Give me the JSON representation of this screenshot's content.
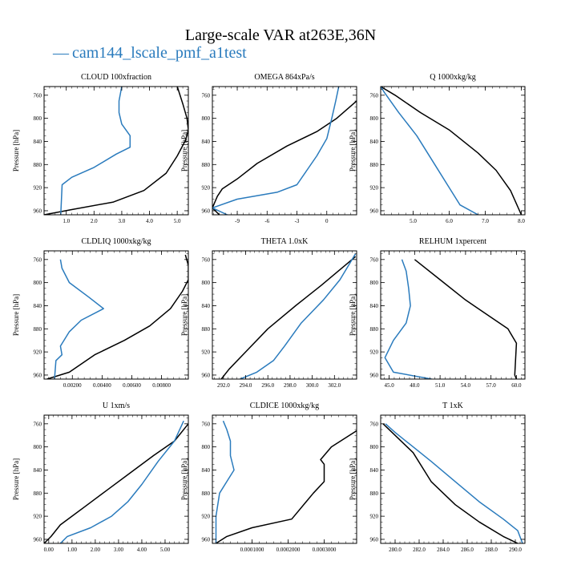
{
  "figure": {
    "title": "Large-scale VAR at263E,36N",
    "legend": {
      "dash": "—",
      "label": "cam144_lscale_pmf_a1test"
    },
    "colors": {
      "series_a": "#000000",
      "series_b": "#2a7bbd"
    }
  },
  "chart_data": [
    {
      "type": "line",
      "title": "CLOUD  100xfraction",
      "ylabel": "Pressure [hPa]",
      "xlim": [
        0.2,
        5.4
      ],
      "ylim": [
        745,
        967
      ],
      "xticks": [
        1.0,
        2.0,
        3.0,
        4.0,
        5.0
      ],
      "xticklabels": [
        "1.0",
        "2.0",
        "3.0",
        "4.0",
        "5.0"
      ],
      "yticks": [
        760,
        800,
        840,
        880,
        920,
        960
      ],
      "yticklabels": [
        "760",
        "800",
        "840",
        "880",
        "920",
        "960"
      ],
      "series": [
        {
          "name": "black",
          "color": "#000000",
          "x": [
            0.2,
            1.2,
            2.7,
            3.8,
            4.6,
            5.0,
            5.3,
            5.4,
            5.35,
            5.2,
            5.0
          ],
          "y": [
            967,
            958,
            945,
            925,
            895,
            865,
            838,
            820,
            800,
            775,
            745
          ]
        },
        {
          "name": "blue",
          "color": "#2a7bbd",
          "x": [
            0.8,
            0.85,
            1.2,
            2.0,
            2.8,
            3.3,
            3.3,
            3.0,
            2.9,
            2.9,
            3.0
          ],
          "y": [
            967,
            915,
            902,
            885,
            862,
            850,
            830,
            810,
            790,
            770,
            745
          ]
        }
      ]
    },
    {
      "type": "line",
      "title": "OMEGA  864xPa/s",
      "ylabel": "Pressure [hPa]",
      "xlim": [
        -11.5,
        3
      ],
      "ylim": [
        745,
        967
      ],
      "xticks": [
        -9,
        -6,
        -3,
        0
      ],
      "xticklabels": [
        "-9",
        "-6",
        "-3",
        "0"
      ],
      "yticks": [
        760,
        800,
        840,
        880,
        920,
        960
      ],
      "yticklabels": [
        "760",
        "800",
        "840",
        "880",
        "920",
        "960"
      ],
      "series": [
        {
          "name": "black",
          "color": "#000000",
          "x": [
            -10.8,
            -11.5,
            -11,
            -10.5,
            -9,
            -7,
            -4,
            -1,
            1,
            3
          ],
          "y": [
            967,
            955,
            935,
            922,
            905,
            878,
            848,
            823,
            800,
            770
          ]
        },
        {
          "name": "blue",
          "color": "#2a7bbd",
          "x": [
            -10,
            -11.5,
            -9,
            -5,
            -3,
            -2,
            -1,
            0,
            0.5,
            0.9,
            1.2
          ],
          "y": [
            967,
            955,
            940,
            928,
            915,
            890,
            865,
            835,
            800,
            770,
            745
          ]
        }
      ]
    },
    {
      "type": "line",
      "title": "Q  1000xkg/kg",
      "ylabel": "Pressure [hPa]",
      "xlim": [
        4.1,
        8.1
      ],
      "ylim": [
        745,
        967
      ],
      "xticks": [
        5.0,
        6.0,
        7.0,
        8.0
      ],
      "xticklabels": [
        "5.0",
        "6.0",
        "7.0",
        "8.0"
      ],
      "yticks": [
        760,
        800,
        840,
        880,
        920,
        960
      ],
      "yticklabels": [
        "760",
        "800",
        "840",
        "880",
        "920",
        "960"
      ],
      "series": [
        {
          "name": "black",
          "color": "#000000",
          "x": [
            8.0,
            7.7,
            7.3,
            6.8,
            6.0,
            5.2,
            4.5,
            4.1
          ],
          "y": [
            967,
            925,
            890,
            860,
            820,
            790,
            760,
            745
          ]
        },
        {
          "name": "blue",
          "color": "#2a7bbd",
          "x": [
            6.8,
            6.3,
            6.0,
            5.6,
            5.1,
            4.6,
            4.2,
            4.1
          ],
          "y": [
            967,
            950,
            920,
            880,
            830,
            790,
            755,
            745
          ]
        }
      ]
    },
    {
      "type": "line",
      "title": "CLDLIQ  1000xkg/kg",
      "ylabel": "Pressure [hPa]",
      "xlim": [
        0.0001,
        0.0098
      ],
      "ylim": [
        745,
        967
      ],
      "xticks": [
        0.002,
        0.004,
        0.006,
        0.008
      ],
      "xticklabels": [
        "0.00200",
        "0.00400",
        "0.00600",
        "0.00800"
      ],
      "yticks": [
        760,
        800,
        840,
        880,
        920,
        960
      ],
      "yticklabels": [
        "760",
        "800",
        "840",
        "880",
        "920",
        "960"
      ],
      "series": [
        {
          "name": "black",
          "color": "#000000",
          "x": [
            0.0003,
            0.0018,
            0.0035,
            0.0055,
            0.0072,
            0.0086,
            0.0094,
            0.0098,
            0.0098,
            0.0096
          ],
          "y": [
            967,
            955,
            925,
            900,
            875,
            845,
            815,
            795,
            770,
            752
          ]
        },
        {
          "name": "blue",
          "color": "#2a7bbd",
          "x": [
            0.0008,
            0.0009,
            0.0013,
            0.0012,
            0.0018,
            0.0026,
            0.0041,
            0.0031,
            0.0018,
            0.0013,
            0.0012
          ],
          "y": [
            967,
            935,
            925,
            910,
            885,
            865,
            845,
            825,
            800,
            775,
            760
          ]
        }
      ]
    },
    {
      "type": "line",
      "title": "THETA  1.0xK",
      "ylabel": "Pressure [hPa]",
      "xlim": [
        291,
        304
      ],
      "ylim": [
        745,
        967
      ],
      "xticks": [
        292.0,
        294.0,
        296.0,
        298.0,
        300.0,
        302.0
      ],
      "xticklabels": [
        "292.0",
        "294.0",
        "296.0",
        "298.0",
        "300.0",
        "302.0"
      ],
      "yticks": [
        760,
        800,
        840,
        880,
        920,
        960
      ],
      "yticklabels": [
        "760",
        "800",
        "840",
        "880",
        "920",
        "960"
      ],
      "series": [
        {
          "name": "black",
          "color": "#000000",
          "x": [
            291.8,
            292.5,
            294.0,
            296.0,
            298.5,
            300.8,
            303.9
          ],
          "y": [
            967,
            950,
            920,
            880,
            840,
            805,
            755
          ]
        },
        {
          "name": "blue",
          "color": "#2a7bbd",
          "x": [
            293.5,
            295.0,
            296.5,
            297.5,
            299.0,
            301.0,
            302.5,
            303.9
          ],
          "y": [
            967,
            955,
            935,
            910,
            870,
            830,
            795,
            750
          ]
        }
      ]
    },
    {
      "type": "line",
      "title": "RELHUM  1xpercent",
      "ylabel": "Pressure [hPa]",
      "xlim": [
        44,
        61
      ],
      "ylim": [
        745,
        967
      ],
      "xticks": [
        45.0,
        48.0,
        51.0,
        54.0,
        57.0,
        60.0
      ],
      "xticklabels": [
        "45.0",
        "48.0",
        "51.0",
        "54.0",
        "57.0",
        "60.0"
      ],
      "yticks": [
        760,
        800,
        840,
        880,
        920,
        960
      ],
      "yticklabels": [
        "760",
        "800",
        "840",
        "880",
        "920",
        "960"
      ],
      "series": [
        {
          "name": "black",
          "color": "#000000",
          "x": [
            60.0,
            59.8,
            60.0,
            59.0,
            57.0,
            54.0,
            51.0,
            48.0
          ],
          "y": [
            967,
            960,
            905,
            880,
            860,
            830,
            795,
            760
          ]
        },
        {
          "name": "blue",
          "color": "#2a7bbd",
          "x": [
            50.0,
            45.5,
            44.5,
            45.5,
            47.0,
            47.5,
            47.3,
            47.0,
            46.5
          ],
          "y": [
            967,
            955,
            930,
            900,
            870,
            840,
            810,
            780,
            760
          ]
        }
      ]
    },
    {
      "type": "line",
      "title": "U  1xm/s",
      "ylabel": "Pressure [hPa]",
      "xlim": [
        -0.2,
        6.0
      ],
      "ylim": [
        745,
        967
      ],
      "xticks": [
        0.0,
        1.0,
        2.0,
        3.0,
        4.0,
        5.0
      ],
      "xticklabels": [
        "0.00",
        "1.00",
        "2.00",
        "3.00",
        "4.00",
        "5.00"
      ],
      "yticks": [
        760,
        800,
        840,
        880,
        920,
        960
      ],
      "yticklabels": [
        "760",
        "800",
        "840",
        "880",
        "920",
        "960"
      ],
      "series": [
        {
          "name": "black",
          "color": "#000000",
          "x": [
            -0.2,
            0.1,
            0.5,
            1.5,
            2.5,
            3.5,
            4.5,
            5.4,
            6.0
          ],
          "y": [
            967,
            955,
            935,
            905,
            875,
            845,
            815,
            790,
            760
          ]
        },
        {
          "name": "blue",
          "color": "#2a7bbd",
          "x": [
            0.5,
            0.8,
            1.8,
            2.7,
            3.4,
            4.0,
            4.7,
            5.4,
            5.8
          ],
          "y": [
            967,
            955,
            940,
            920,
            895,
            865,
            825,
            790,
            755
          ]
        }
      ]
    },
    {
      "type": "line",
      "title": "CLDICE  1000xkg/kg",
      "ylabel": "Pressure [hPa]",
      "xlim": [
        -1e-05,
        0.00039
      ],
      "ylim": [
        745,
        967
      ],
      "xticks": [
        0.0001,
        0.0002,
        0.0003
      ],
      "xticklabels": [
        "0.0001000",
        "0.0002000",
        "0.0003000"
      ],
      "yticks": [
        760,
        800,
        840,
        880,
        920,
        960
      ],
      "yticklabels": [
        "760",
        "800",
        "840",
        "880",
        "920",
        "960"
      ],
      "series": [
        {
          "name": "black",
          "color": "#000000",
          "x": [
            0.0,
            3e-05,
            0.0001,
            0.00021,
            0.00027,
            0.0003,
            0.0003,
            0.00029,
            0.00032,
            0.00039
          ],
          "y": [
            967,
            955,
            940,
            925,
            880,
            860,
            830,
            822,
            800,
            772
          ]
        },
        {
          "name": "blue",
          "color": "#2a7bbd",
          "x": [
            0.0,
            0.0,
            1e-05,
            3e-05,
            5e-05,
            4e-05,
            4e-05,
            3e-05,
            2e-05
          ],
          "y": [
            967,
            920,
            880,
            860,
            840,
            815,
            790,
            770,
            755
          ]
        }
      ]
    },
    {
      "type": "line",
      "title": "T  1xK",
      "ylabel": "Pressure [hPa]",
      "xlim": [
        278.8,
        290.8
      ],
      "ylim": [
        745,
        967
      ],
      "xticks": [
        280.0,
        282.0,
        284.0,
        286.0,
        288.0,
        290.0
      ],
      "xticklabels": [
        "280.0",
        "282.0",
        "284.0",
        "286.0",
        "288.0",
        "290.0"
      ],
      "yticks": [
        760,
        800,
        840,
        880,
        920,
        960
      ],
      "yticklabels": [
        "760",
        "800",
        "840",
        "880",
        "920",
        "960"
      ],
      "series": [
        {
          "name": "black",
          "color": "#000000",
          "x": [
            290.2,
            289.0,
            287.0,
            285.0,
            283.0,
            281.5,
            280.0,
            279.0
          ],
          "y": [
            967,
            955,
            930,
            900,
            860,
            810,
            780,
            760
          ]
        },
        {
          "name": "blue",
          "color": "#2a7bbd",
          "x": [
            290.6,
            290.2,
            289.0,
            287.0,
            285.0,
            283.0,
            281.5,
            280.0,
            279.2
          ],
          "y": [
            967,
            945,
            925,
            895,
            860,
            825,
            800,
            775,
            760
          ]
        }
      ]
    }
  ]
}
